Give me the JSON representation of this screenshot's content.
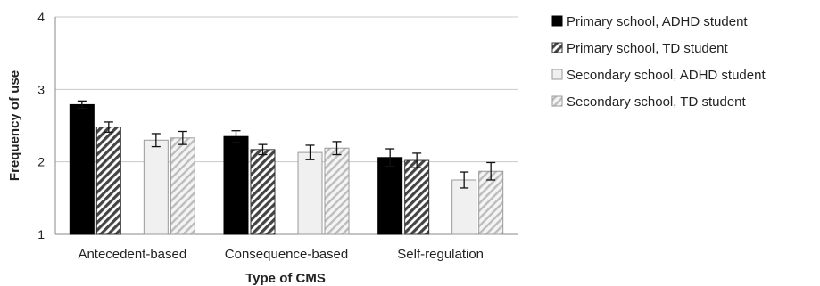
{
  "chart_data": {
    "type": "bar",
    "title": "",
    "xlabel": "Type of CMS",
    "ylabel": "Frequency of use",
    "ylim": [
      1,
      4
    ],
    "yticks": [
      "1",
      "2",
      "3",
      "4"
    ],
    "grid": true,
    "legend_position": "right",
    "categories": [
      "Antecedent-based",
      "Consequence-based",
      "Self-regulation"
    ],
    "series": [
      {
        "name": "Primary school, ADHD student",
        "fill": "#000000",
        "pattern": "solid",
        "values": [
          2.79,
          2.35,
          2.06
        ],
        "errors": [
          0.05,
          0.08,
          0.12
        ]
      },
      {
        "name": "Primary school, TD student",
        "fill": "#555555",
        "pattern": "hatch-dark",
        "values": [
          2.48,
          2.17,
          2.02
        ],
        "errors": [
          0.07,
          0.07,
          0.1
        ]
      },
      {
        "name": "Secondary school, ADHD student",
        "fill": "#f0f0f0",
        "pattern": "solid-light",
        "values": [
          2.3,
          2.13,
          1.75
        ],
        "errors": [
          0.09,
          0.1,
          0.11
        ]
      },
      {
        "name": "Secondary school, TD student",
        "fill": "#e8e8e8",
        "pattern": "hatch-light",
        "values": [
          2.33,
          2.19,
          1.87
        ],
        "errors": [
          0.09,
          0.09,
          0.12
        ]
      }
    ]
  }
}
